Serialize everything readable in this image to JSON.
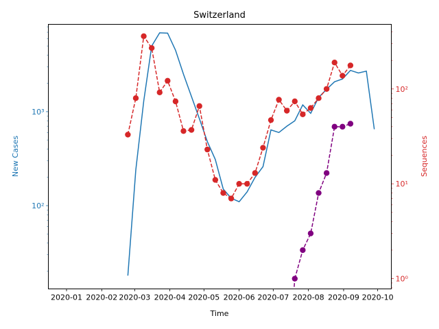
{
  "chart_data": {
    "type": "line",
    "title": "Switzerland",
    "xlabel": "Time",
    "ylabel_left": "New Cases",
    "ylabel_right": "Sequences",
    "x_scale": "date",
    "y_left_scale": "log",
    "y_right_scale": "log",
    "xlim": [
      "2019-12-16",
      "2020-10-13"
    ],
    "ylim_left": [
      13,
      8500
    ],
    "ylim_right": [
      0.78,
      480
    ],
    "x_ticks": [
      "2020-01",
      "2020-02",
      "2020-03",
      "2020-04",
      "2020-05",
      "2020-06",
      "2020-07",
      "2020-08",
      "2020-09",
      "2020-10"
    ],
    "x_tick_dates": [
      "2020-01-01",
      "2020-02-01",
      "2020-03-01",
      "2020-04-01",
      "2020-05-01",
      "2020-06-01",
      "2020-07-01",
      "2020-08-01",
      "2020-09-01",
      "2020-10-01"
    ],
    "y_left_ticks": [
      {
        "value": 100,
        "label": "10²"
      },
      {
        "value": 1000,
        "label": "10³"
      }
    ],
    "y_right_ticks": [
      {
        "value": 1,
        "label": "10⁰"
      },
      {
        "value": 10,
        "label": "10¹"
      },
      {
        "value": 100,
        "label": "10²"
      }
    ],
    "colors": {
      "left_axis": "#1f77b4",
      "right_axis": "#d62728",
      "purple": "#800080"
    },
    "series": [
      {
        "style": "solid-line",
        "axis": "left",
        "color": "#1f77b4",
        "x": [
          "2020-02-24",
          "2020-03-02",
          "2020-03-09",
          "2020-03-16",
          "2020-03-23",
          "2020-03-30",
          "2020-04-06",
          "2020-04-13",
          "2020-04-20",
          "2020-04-27",
          "2020-05-04",
          "2020-05-11",
          "2020-05-18",
          "2020-05-25",
          "2020-06-01",
          "2020-06-08",
          "2020-06-15",
          "2020-06-22",
          "2020-06-29",
          "2020-07-06",
          "2020-07-13",
          "2020-07-20",
          "2020-07-27",
          "2020-08-03",
          "2020-08-10",
          "2020-08-17",
          "2020-08-24",
          "2020-08-31",
          "2020-09-07",
          "2020-09-14",
          "2020-09-21",
          "2020-09-28"
        ],
        "y": [
          18,
          240,
          1300,
          5000,
          6900,
          6850,
          4500,
          2500,
          1450,
          840,
          480,
          310,
          150,
          120,
          110,
          140,
          200,
          260,
          640,
          600,
          700,
          800,
          1180,
          960,
          1420,
          1730,
          2080,
          2230,
          2750,
          2580,
          2700,
          650
        ]
      },
      {
        "style": "dashed-markers",
        "axis": "right",
        "color": "#d62728",
        "x": [
          "2020-02-24",
          "2020-03-02",
          "2020-03-09",
          "2020-03-16",
          "2020-03-23",
          "2020-03-30",
          "2020-04-06",
          "2020-04-13",
          "2020-04-20",
          "2020-04-27",
          "2020-05-04",
          "2020-05-11",
          "2020-05-18",
          "2020-05-25",
          "2020-06-01",
          "2020-06-08",
          "2020-06-15",
          "2020-06-22",
          "2020-06-29",
          "2020-07-06",
          "2020-07-13",
          "2020-07-20",
          "2020-07-27",
          "2020-08-03",
          "2020-08-10",
          "2020-08-17",
          "2020-08-24",
          "2020-08-31",
          "2020-09-07"
        ],
        "y": [
          33,
          80,
          360,
          270,
          92,
          122,
          74,
          36,
          37,
          66,
          23,
          11,
          8,
          7,
          10,
          10,
          13,
          24,
          47,
          77,
          59,
          74,
          54,
          63,
          80,
          100,
          190,
          138,
          177
        ]
      },
      {
        "style": "dashed-markers",
        "axis": "right",
        "color": "#800080",
        "x": [
          "2020-07-20",
          "2020-07-27",
          "2020-08-03",
          "2020-08-10",
          "2020-08-17",
          "2020-08-24",
          "2020-08-31",
          "2020-09-07"
        ],
        "y": [
          1,
          2,
          3,
          8,
          13,
          40,
          40,
          43
        ]
      }
    ]
  }
}
